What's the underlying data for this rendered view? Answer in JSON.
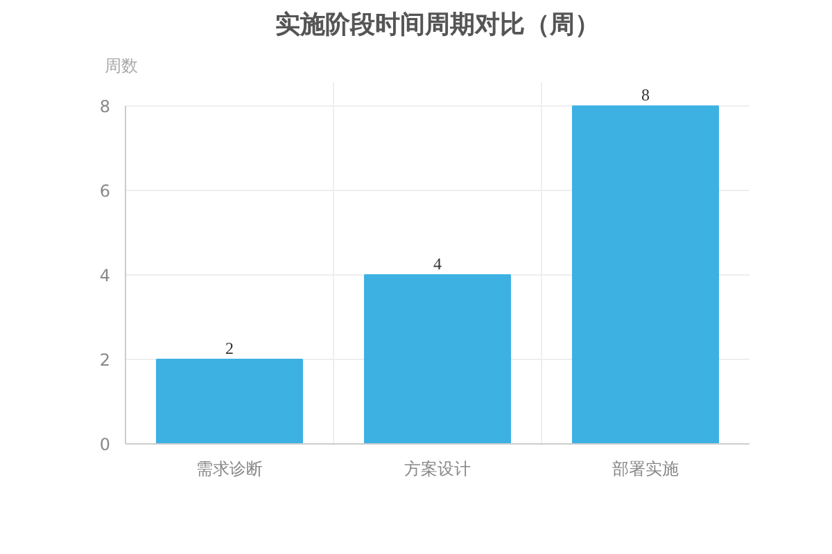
{
  "chart_data": {
    "type": "bar",
    "title": "实施阶段时间周期对比（周）",
    "ylabel": "周数",
    "categories": [
      "需求诊断",
      "方案设计",
      "部署实施"
    ],
    "values": [
      2,
      4,
      8
    ],
    "color": "#3eb1e3",
    "ylim": [
      0,
      8
    ],
    "yticks": [
      0,
      2,
      4,
      6,
      8
    ],
    "grid": true,
    "data_labels": true
  }
}
